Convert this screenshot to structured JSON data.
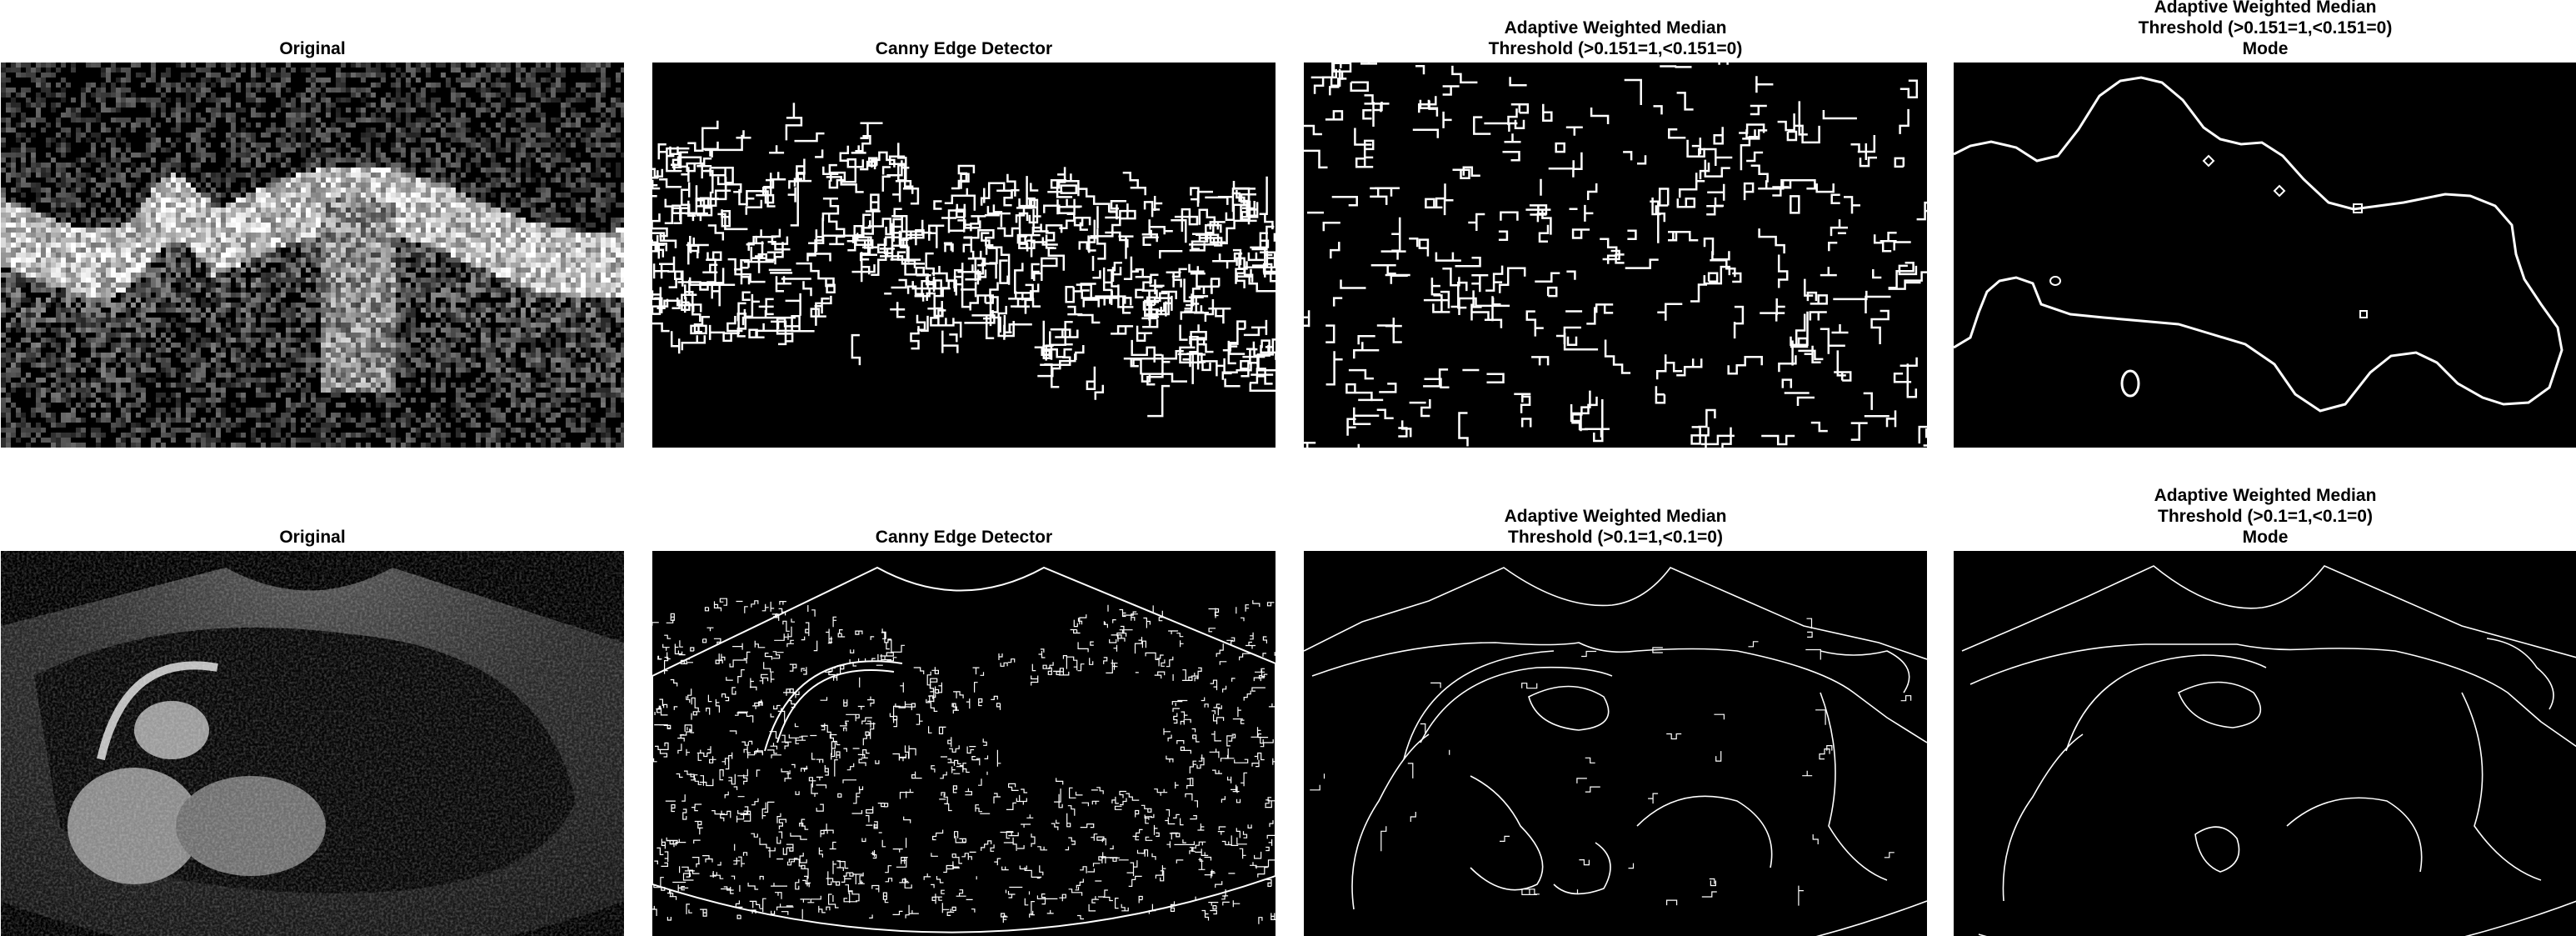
{
  "figure": {
    "rows": [
      {
        "panels": [
          {
            "title_lines": [
              "Original"
            ],
            "kind": "speckle-original"
          },
          {
            "title_lines": [
              "Canny Edge Detector"
            ],
            "kind": "dense-edges"
          },
          {
            "title_lines": [
              "Adaptive Weighted Median",
              "Threshold (>0.151=1,<0.151=0)"
            ],
            "kind": "blobby-edges"
          },
          {
            "title_lines": [
              "Adaptive Weighted Median",
              "Threshold (>0.151=1,<0.151=0)",
              "Mode"
            ],
            "kind": "smooth-contour"
          }
        ]
      },
      {
        "panels": [
          {
            "title_lines": [
              "Original"
            ],
            "kind": "ultrasound-original"
          },
          {
            "title_lines": [
              "Canny Edge Detector"
            ],
            "kind": "ultrasound-dense-edges"
          },
          {
            "title_lines": [
              "Adaptive Weighted Median",
              "Threshold (>0.1=1,<0.1=0)"
            ],
            "kind": "ultrasound-contours"
          },
          {
            "title_lines": [
              "Adaptive Weighted Median",
              "Threshold (>0.1=1,<0.1=0)",
              "Mode"
            ],
            "kind": "ultrasound-smooth-contours"
          }
        ]
      }
    ]
  }
}
